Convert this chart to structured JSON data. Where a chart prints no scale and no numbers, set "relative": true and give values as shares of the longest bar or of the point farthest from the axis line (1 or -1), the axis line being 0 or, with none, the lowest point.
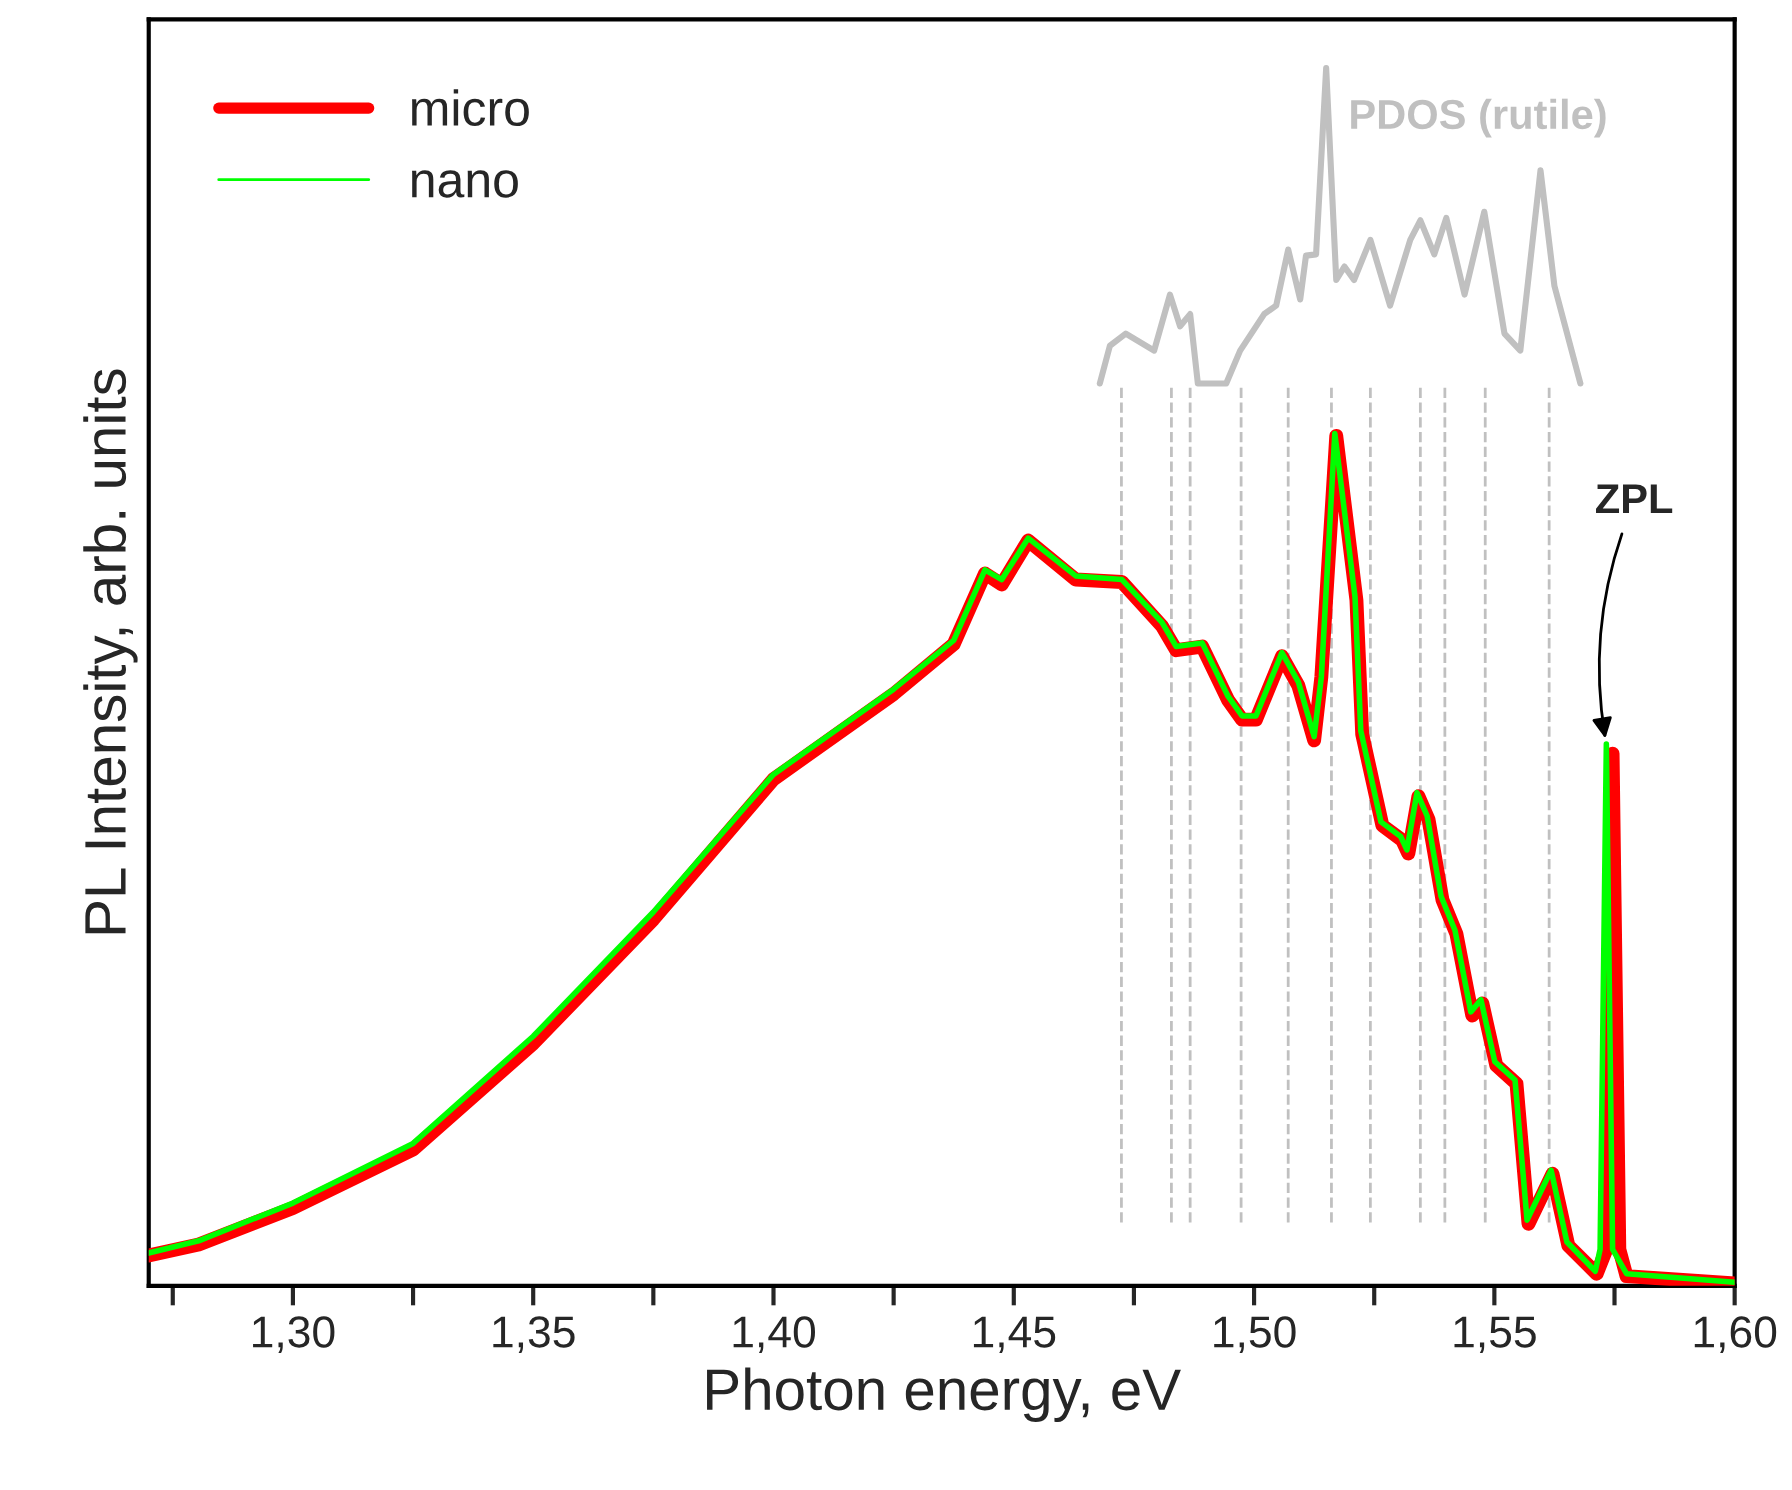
{
  "chart_data": {
    "type": "line",
    "relative": true,
    "xlabel": "Photon energy, eV",
    "ylabel": "PL Intensity, arb. units",
    "xlim": [
      1.27,
      1.6
    ],
    "xticks": [
      {
        "value": 1.275,
        "label": null
      },
      {
        "value": 1.3,
        "label": "1,30"
      },
      {
        "value": 1.325,
        "label": null
      },
      {
        "value": 1.35,
        "label": "1,35"
      },
      {
        "value": 1.375,
        "label": null
      },
      {
        "value": 1.4,
        "label": "1,40"
      },
      {
        "value": 1.425,
        "label": null
      },
      {
        "value": 1.45,
        "label": "1,45"
      },
      {
        "value": 1.475,
        "label": null
      },
      {
        "value": 1.5,
        "label": "1,50"
      },
      {
        "value": 1.525,
        "label": null
      },
      {
        "value": 1.55,
        "label": "1,55"
      },
      {
        "value": 1.575,
        "label": null
      },
      {
        "value": 1.6,
        "label": "1,60"
      }
    ],
    "legend": "top left",
    "grid": false,
    "line_style": "solid",
    "marker": "none",
    "series": [
      {
        "name": "micro",
        "color": "#ff0000",
        "x": [
          1.27,
          1.2804,
          1.3,
          1.325,
          1.35,
          1.375,
          1.4,
          1.425,
          1.4375,
          1.444,
          1.4475,
          1.453,
          1.4629,
          1.4725,
          1.4808,
          1.4838,
          1.4892,
          1.4946,
          1.4975,
          1.5004,
          1.5058,
          1.5092,
          1.5125,
          1.514,
          1.5171,
          1.5213,
          1.5225,
          1.5267,
          1.5308,
          1.5321,
          1.5342,
          1.5363,
          1.5392,
          1.5421,
          1.5454,
          1.5475,
          1.5504,
          1.5546,
          1.5571,
          1.5621,
          1.5654,
          1.5713,
          1.5733,
          1.5746,
          1.576,
          1.5775,
          1.6
        ],
        "values": [
          0.025,
          0.034,
          0.064,
          0.112,
          0.199,
          0.301,
          0.416,
          0.486,
          0.527,
          0.585,
          0.576,
          0.612,
          0.58,
          0.578,
          0.542,
          0.522,
          0.525,
          0.481,
          0.465,
          0.465,
          0.517,
          0.493,
          0.448,
          0.5,
          0.698,
          0.563,
          0.453,
          0.378,
          0.366,
          0.355,
          0.402,
          0.383,
          0.317,
          0.289,
          0.222,
          0.232,
          0.181,
          0.166,
          0.051,
          0.092,
          0.033,
          0.01,
          0.03,
          0.437,
          0.03,
          0.008,
          0.002
        ]
      },
      {
        "name": "nano",
        "color": "#00ff00",
        "x": [
          1.27,
          1.2804,
          1.3,
          1.325,
          1.35,
          1.375,
          1.4,
          1.425,
          1.4375,
          1.444,
          1.4475,
          1.453,
          1.4629,
          1.4725,
          1.4808,
          1.4838,
          1.4892,
          1.4946,
          1.4975,
          1.5004,
          1.5058,
          1.5092,
          1.5125,
          1.514,
          1.5168,
          1.521,
          1.5222,
          1.5264,
          1.5305,
          1.5318,
          1.5339,
          1.536,
          1.5389,
          1.5418,
          1.5451,
          1.5472,
          1.5501,
          1.5543,
          1.5568,
          1.5618,
          1.5651,
          1.571,
          1.572,
          1.5733,
          1.5746,
          1.5775,
          1.6
        ],
        "values": [
          0.027,
          0.037,
          0.068,
          0.117,
          0.205,
          0.307,
          0.42,
          0.49,
          0.53,
          0.588,
          0.58,
          0.614,
          0.583,
          0.58,
          0.545,
          0.525,
          0.528,
          0.484,
          0.468,
          0.468,
          0.52,
          0.496,
          0.451,
          0.5,
          0.7,
          0.566,
          0.456,
          0.381,
          0.369,
          0.358,
          0.405,
          0.386,
          0.32,
          0.292,
          0.225,
          0.235,
          0.184,
          0.169,
          0.054,
          0.095,
          0.036,
          0.012,
          0.03,
          0.445,
          0.03,
          0.01,
          0.003
        ]
      },
      {
        "name": "PDOS (rutile)",
        "color": "#c0c0c0",
        "x": [
          1.4679,
          1.47,
          1.4733,
          1.4792,
          1.4825,
          1.4846,
          1.4867,
          1.4883,
          1.4942,
          1.4971,
          1.5021,
          1.5046,
          1.5071,
          1.5096,
          1.5108,
          1.5129,
          1.515,
          1.5171,
          1.5188,
          1.5208,
          1.5242,
          1.5283,
          1.5325,
          1.5346,
          1.5375,
          1.54,
          1.5438,
          1.5479,
          1.5521,
          1.5554,
          1.5596,
          1.5625,
          1.5679
        ],
        "values": [
          0.741,
          0.772,
          0.782,
          0.768,
          0.814,
          0.788,
          0.798,
          0.741,
          0.741,
          0.768,
          0.798,
          0.805,
          0.851,
          0.81,
          0.846,
          0.847,
          1.0,
          0.826,
          0.837,
          0.826,
          0.859,
          0.805,
          0.859,
          0.875,
          0.847,
          0.877,
          0.814,
          0.882,
          0.782,
          0.768,
          0.916,
          0.821,
          0.741
        ]
      }
    ],
    "ref_lines": [
      {
        "axis": "x",
        "value": 1.4724,
        "color": "#c0c0c0",
        "line_style": "dashed"
      },
      {
        "axis": "x",
        "value": 1.4828,
        "color": "#c0c0c0",
        "line_style": "dashed"
      },
      {
        "axis": "x",
        "value": 1.4867,
        "color": "#c0c0c0",
        "line_style": "dashed"
      },
      {
        "axis": "x",
        "value": 1.4973,
        "color": "#c0c0c0",
        "line_style": "dashed"
      },
      {
        "axis": "x",
        "value": 1.5071,
        "color": "#c0c0c0",
        "line_style": "dashed"
      },
      {
        "axis": "x",
        "value": 1.5161,
        "color": "#c0c0c0",
        "line_style": "dashed"
      },
      {
        "axis": "x",
        "value": 1.5242,
        "color": "#c0c0c0",
        "line_style": "dashed"
      },
      {
        "axis": "x",
        "value": 1.5346,
        "color": "#c0c0c0",
        "line_style": "dashed"
      },
      {
        "axis": "x",
        "value": 1.5397,
        "color": "#c0c0c0",
        "line_style": "dashed"
      },
      {
        "axis": "x",
        "value": 1.5481,
        "color": "#c0c0c0",
        "line_style": "dashed"
      },
      {
        "axis": "x",
        "value": 1.5614,
        "color": "#c0c0c0",
        "line_style": "dashed"
      }
    ],
    "annotations": [
      {
        "text": "ZPL",
        "x": 1.5733,
        "y": 0.445
      }
    ]
  }
}
